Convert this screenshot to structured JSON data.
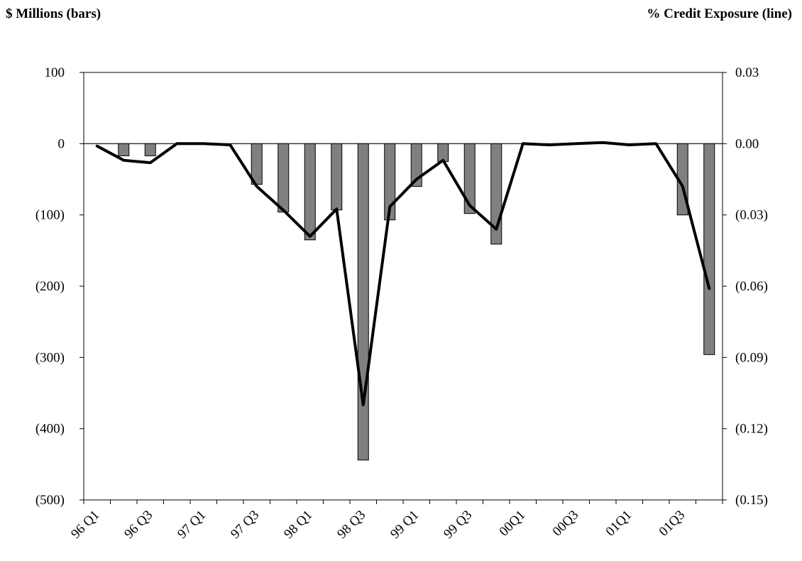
{
  "chart_data": {
    "type": "bar+line",
    "left_axis_title": "$ Millions (bars)",
    "right_axis_title": "% Credit Exposure (line)",
    "left_ylim": [
      -500,
      100
    ],
    "left_ticks": [
      100,
      0,
      -100,
      -200,
      -300,
      -400,
      -500
    ],
    "left_tick_labels": [
      "100",
      "0",
      "(100)",
      "(200)",
      "(300)",
      "(400)",
      "(500)"
    ],
    "right_ylim": [
      -0.15,
      0.03
    ],
    "right_ticks": [
      0.03,
      0.0,
      -0.03,
      -0.06,
      -0.09,
      -0.12,
      -0.15
    ],
    "right_tick_labels": [
      "0.03",
      "0.00",
      "(0.03)",
      "(0.06)",
      "(0.09)",
      "(0.12)",
      "(0.15)"
    ],
    "x_tick_labels": [
      "96 Q1",
      "96 Q3",
      "97 Q1",
      "97 Q3",
      "98 Q1",
      "98 Q3",
      "99 Q1",
      "99 Q3",
      "00Q1",
      "00Q3",
      "01Q1",
      "01Q3"
    ],
    "categories": [
      "96 Q1",
      "96 Q2",
      "96 Q3",
      "96 Q4",
      "97 Q1",
      "97 Q2",
      "97 Q3",
      "97 Q4",
      "98 Q1",
      "98 Q2",
      "98 Q3",
      "98 Q4",
      "99 Q1",
      "99 Q2",
      "99 Q3",
      "99 Q4",
      "00Q1",
      "00Q2",
      "00Q3",
      "00Q4",
      "01Q1",
      "01Q2",
      "01Q3",
      "01Q4"
    ],
    "bars": [
      0,
      -17,
      -17,
      0,
      0,
      0,
      -57,
      -96,
      -135,
      -93,
      -444,
      -107,
      -60,
      -25,
      -98,
      -141,
      0,
      0,
      0,
      0,
      0,
      0,
      -100,
      -296
    ],
    "line": [
      -0.001,
      -0.007,
      -0.008,
      0.0,
      0.0,
      -0.0005,
      -0.018,
      -0.028,
      -0.039,
      -0.0275,
      -0.11,
      -0.0265,
      -0.015,
      -0.007,
      -0.026,
      -0.036,
      0.0,
      -0.0005,
      0.0,
      0.0005,
      -0.0005,
      0.0,
      -0.018,
      -0.061
    ],
    "colors": {
      "bar_fill": "#808080",
      "bar_stroke": "#000000",
      "line": "#000000"
    },
    "grid": false,
    "legend": "none"
  }
}
